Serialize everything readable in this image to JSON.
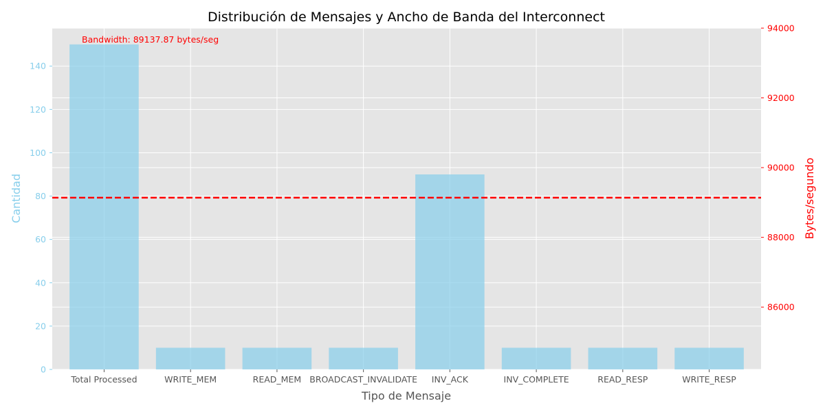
{
  "chart_data": {
    "type": "bar",
    "title": "Distribución de Mensajes y Ancho de Banda del Interconnect",
    "xlabel": "Tipo de Mensaje",
    "ylabel": "Cantidad",
    "ylabel_right": "Bytes/segundo",
    "categories": [
      "Total Processed",
      "WRITE_MEM",
      "READ_MEM",
      "BROADCAST_INVALIDATE",
      "INV_ACK",
      "INV_COMPLETE",
      "READ_RESP",
      "WRITE_RESP"
    ],
    "values": [
      150,
      10,
      10,
      10,
      90,
      10,
      10,
      10
    ],
    "ylim": [
      0,
      157.5
    ],
    "yticks": [
      0,
      20,
      40,
      60,
      80,
      100,
      120,
      140
    ],
    "ylim_right": [
      84212,
      94000
    ],
    "yticks_right": [
      86000,
      88000,
      90000,
      92000,
      94000
    ],
    "bandwidth_value": 89137.87,
    "bandwidth_label": "Bandwidth: 89137.87 bytes/seg",
    "grid": true,
    "colors": {
      "bar": "#87CEEB",
      "left_axis": "#87CEEB",
      "right_axis": "#FF0000",
      "bandwidth_line": "#FF0000",
      "plot_bg": "#E5E5E5",
      "grid": "#FFFFFF",
      "text": "#555555"
    }
  }
}
